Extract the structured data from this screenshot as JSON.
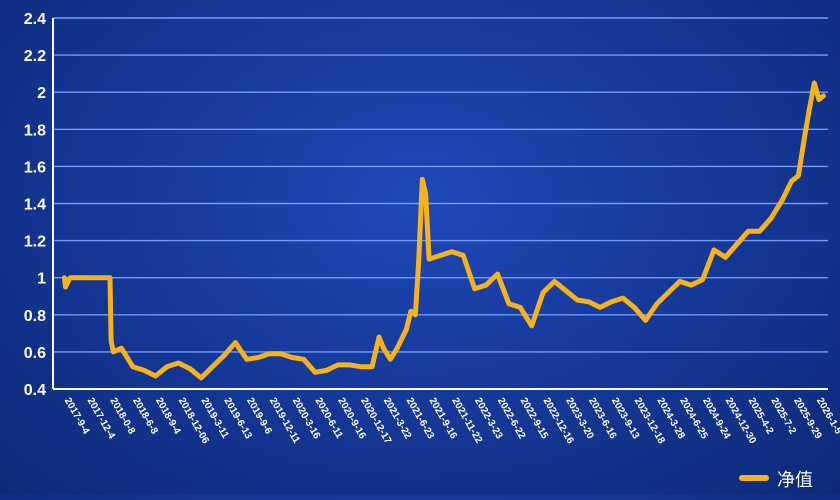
{
  "chart_data": {
    "type": "line",
    "title": "",
    "xlabel": "",
    "ylabel": "",
    "ylim": [
      0.4,
      2.4
    ],
    "yticks": [
      0.4,
      0.6,
      0.8,
      1,
      1.2,
      1.4,
      1.6,
      1.8,
      2,
      2.2,
      2.4
    ],
    "grid": true,
    "legend_position": "bottom-right",
    "colors": {
      "line": "#f5b21b",
      "grid": "#6f9bff",
      "axis": "#ffffff",
      "text": "#ffffff"
    },
    "xticks": [
      "2017-9-4",
      "2017-12-4",
      "2018-0-8",
      "2018-6-8",
      "2018-9-4",
      "2018-12-06",
      "2019-3-11",
      "2019-6-13",
      "2019-9-6",
      "2019-12-11",
      "2020-3-16",
      "2020-6-11",
      "2020-9-16",
      "2020-12-17",
      "2021-3-22",
      "2021-6-23",
      "2021-9-16",
      "2021-11-22",
      "2022-3-23",
      "2022-6-22",
      "2022-9-15",
      "2022-12-16",
      "2023-3-20",
      "2023-6-16",
      "2023-9-13",
      "2023-12-18",
      "2024-3-28",
      "2024-6-25",
      "2024-9-24",
      "2024-12-30",
      "2025-4-2",
      "2025-7-2",
      "2025-9-29",
      "2026-1-5"
    ],
    "series": [
      {
        "name": "净值",
        "x": [
          0,
          0.05,
          0.25,
          0.5,
          1,
          1.5,
          2,
          2.05,
          2.15,
          2.5,
          3,
          3.5,
          4,
          4.5,
          5,
          5.5,
          6,
          6.5,
          7,
          7.5,
          8,
          8.5,
          9,
          9.5,
          10,
          10.5,
          11,
          11.5,
          12,
          12.5,
          13,
          13.5,
          13.8,
          14,
          14.3,
          14.6,
          15,
          15.2,
          15.4,
          15.55,
          15.7,
          15.85,
          16,
          16.5,
          17,
          17.5,
          18,
          18.5,
          19,
          19.5,
          20,
          20.5,
          21,
          21.5,
          22,
          22.5,
          23,
          23.5,
          24,
          24.5,
          25,
          25.5,
          26,
          26.5,
          27,
          27.5,
          28,
          28.5,
          29,
          29.5,
          30,
          30.5,
          31,
          31.5,
          31.9,
          32.2,
          32.5,
          32.7,
          32.9,
          33.1,
          33.3
        ],
        "values": [
          1.0,
          0.95,
          1.0,
          1.0,
          1.0,
          1.0,
          1.0,
          0.66,
          0.6,
          0.62,
          0.52,
          0.5,
          0.47,
          0.52,
          0.54,
          0.51,
          0.46,
          0.52,
          0.58,
          0.65,
          0.56,
          0.57,
          0.59,
          0.59,
          0.57,
          0.56,
          0.49,
          0.5,
          0.53,
          0.53,
          0.52,
          0.52,
          0.68,
          0.62,
          0.56,
          0.62,
          0.72,
          0.82,
          0.8,
          1.1,
          1.53,
          1.45,
          1.1,
          1.12,
          1.14,
          1.12,
          0.94,
          0.96,
          1.02,
          0.86,
          0.84,
          0.74,
          0.92,
          0.98,
          0.93,
          0.88,
          0.87,
          0.84,
          0.87,
          0.89,
          0.84,
          0.77,
          0.86,
          0.92,
          0.98,
          0.96,
          0.99,
          1.15,
          1.11,
          1.18,
          1.25,
          1.25,
          1.32,
          1.42,
          1.52,
          1.55,
          1.78,
          1.92,
          2.05,
          1.96,
          1.98
        ]
      }
    ]
  }
}
